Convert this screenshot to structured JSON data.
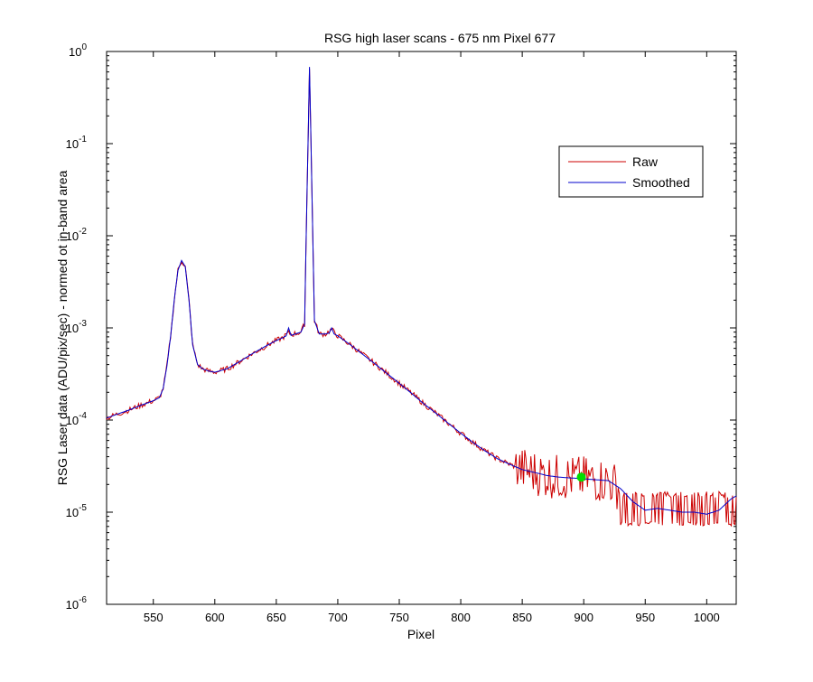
{
  "chart_data": {
    "type": "line",
    "title": "RSG high laser scans  - 675 nm    Pixel 677",
    "xlabel": "Pixel",
    "ylabel": "RSG Laser data (ADU/pix/sec) - normed ot in-band area",
    "xlim": [
      512,
      1024
    ],
    "ylim": [
      1e-06,
      1
    ],
    "yscale": "log",
    "grid": false,
    "legend_position": "top-right",
    "x_ticks": [
      550,
      600,
      650,
      700,
      750,
      800,
      850,
      900,
      950,
      1000
    ],
    "y_ticks": [
      {
        "value": 1e-06,
        "base": "10",
        "exp": "-6"
      },
      {
        "value": 1e-05,
        "base": "10",
        "exp": "-5"
      },
      {
        "value": 0.0001,
        "base": "10",
        "exp": "-4"
      },
      {
        "value": 0.001,
        "base": "10",
        "exp": "-3"
      },
      {
        "value": 0.01,
        "base": "10",
        "exp": "-2"
      },
      {
        "value": 0.1,
        "base": "10",
        "exp": "-1"
      },
      {
        "value": 1,
        "base": "10",
        "exp": "0"
      }
    ],
    "series": [
      {
        "name": "Raw",
        "color": "#cc0000",
        "points": [
          [
            512,
            0.000105
          ],
          [
            520,
            0.000115
          ],
          [
            530,
            0.000128
          ],
          [
            540,
            0.000145
          ],
          [
            550,
            0.000162
          ],
          [
            555,
            0.000175
          ],
          [
            558,
            0.00022
          ],
          [
            561,
            0.00038
          ],
          [
            564,
            0.0008
          ],
          [
            567,
            0.002
          ],
          [
            570,
            0.0042
          ],
          [
            573,
            0.0054
          ],
          [
            576,
            0.0046
          ],
          [
            579,
            0.002
          ],
          [
            582,
            0.00065
          ],
          [
            586,
            0.0004
          ],
          [
            590,
            0.00036
          ],
          [
            595,
            0.00034
          ],
          [
            600,
            0.00033
          ],
          [
            610,
            0.00036
          ],
          [
            620,
            0.00043
          ],
          [
            630,
            0.00052
          ],
          [
            640,
            0.00062
          ],
          [
            650,
            0.00073
          ],
          [
            655,
            0.00078
          ],
          [
            660,
            0.00088
          ],
          [
            663,
            0.00085
          ],
          [
            670,
            0.0009
          ],
          [
            673,
            0.0011
          ],
          [
            675,
            0.03
          ],
          [
            677,
            0.68
          ],
          [
            679,
            0.03
          ],
          [
            681,
            0.0012
          ],
          [
            685,
            0.00086
          ],
          [
            690,
            0.00086
          ],
          [
            695,
            0.00096
          ],
          [
            700,
            0.00082
          ],
          [
            710,
            0.00066
          ],
          [
            720,
            0.00052
          ],
          [
            730,
            0.00041
          ],
          [
            740,
            0.00032
          ],
          [
            750,
            0.00025
          ],
          [
            760,
            0.000195
          ],
          [
            770,
            0.00015
          ],
          [
            780,
            0.000118
          ],
          [
            790,
            9.2e-05
          ],
          [
            800,
            7.2e-05
          ],
          [
            810,
            5.7e-05
          ],
          [
            820,
            4.6e-05
          ],
          [
            830,
            3.8e-05
          ],
          [
            840,
            3.3e-05
          ],
          [
            850,
            2.9e-05
          ],
          [
            860,
            2.7e-05
          ],
          [
            870,
            2.5e-05
          ],
          [
            880,
            2.4e-05
          ],
          [
            890,
            2.35e-05
          ],
          [
            900,
            2.3e-05
          ],
          [
            910,
            2.25e-05
          ],
          [
            920,
            2.2e-05
          ],
          [
            930,
            1.8e-05
          ],
          [
            940,
            1.3e-05
          ],
          [
            950,
            1.05e-05
          ],
          [
            960,
            1.1e-05
          ],
          [
            970,
            1.05e-05
          ],
          [
            980,
            1e-05
          ],
          [
            990,
            1e-05
          ],
          [
            1000,
            1e-05
          ],
          [
            1010,
            1.05e-05
          ],
          [
            1020,
            1.4e-05
          ],
          [
            1024,
            1.5e-05
          ]
        ]
      },
      {
        "name": "Smoothed",
        "color": "#0000cc",
        "points": [
          [
            512,
            0.000105
          ],
          [
            520,
            0.000115
          ],
          [
            530,
            0.000128
          ],
          [
            540,
            0.000145
          ],
          [
            550,
            0.000162
          ],
          [
            555,
            0.000175
          ],
          [
            558,
            0.00022
          ],
          [
            561,
            0.00038
          ],
          [
            564,
            0.0008
          ],
          [
            567,
            0.002
          ],
          [
            570,
            0.0042
          ],
          [
            573,
            0.0054
          ],
          [
            576,
            0.0046
          ],
          [
            579,
            0.002
          ],
          [
            582,
            0.00065
          ],
          [
            586,
            0.0004
          ],
          [
            590,
            0.00036
          ],
          [
            595,
            0.00034
          ],
          [
            600,
            0.00033
          ],
          [
            610,
            0.00036
          ],
          [
            620,
            0.00043
          ],
          [
            630,
            0.00052
          ],
          [
            640,
            0.00062
          ],
          [
            650,
            0.00073
          ],
          [
            655,
            0.00078
          ],
          [
            658,
            0.00082
          ],
          [
            660,
            0.001
          ],
          [
            662,
            0.00083
          ],
          [
            670,
            0.0009
          ],
          [
            673,
            0.0011
          ],
          [
            675,
            0.03
          ],
          [
            677,
            0.68
          ],
          [
            679,
            0.03
          ],
          [
            681,
            0.0012
          ],
          [
            685,
            0.00086
          ],
          [
            690,
            0.00086
          ],
          [
            693,
            0.00088
          ],
          [
            695,
            0.001
          ],
          [
            697,
            0.00086
          ],
          [
            700,
            0.00082
          ],
          [
            710,
            0.00066
          ],
          [
            720,
            0.00052
          ],
          [
            730,
            0.00041
          ],
          [
            740,
            0.00032
          ],
          [
            750,
            0.00025
          ],
          [
            760,
            0.000195
          ],
          [
            770,
            0.00015
          ],
          [
            780,
            0.000118
          ],
          [
            790,
            9.2e-05
          ],
          [
            800,
            7.2e-05
          ],
          [
            810,
            5.7e-05
          ],
          [
            820,
            4.6e-05
          ],
          [
            830,
            3.8e-05
          ],
          [
            840,
            3.3e-05
          ],
          [
            850,
            2.9e-05
          ],
          [
            860,
            2.7e-05
          ],
          [
            870,
            2.5e-05
          ],
          [
            880,
            2.4e-05
          ],
          [
            890,
            2.35e-05
          ],
          [
            900,
            2.3e-05
          ],
          [
            910,
            2.25e-05
          ],
          [
            920,
            2.2e-05
          ],
          [
            930,
            1.8e-05
          ],
          [
            940,
            1.3e-05
          ],
          [
            950,
            1.05e-05
          ],
          [
            960,
            1.1e-05
          ],
          [
            970,
            1.05e-05
          ],
          [
            980,
            1e-05
          ],
          [
            990,
            1e-05
          ],
          [
            1000,
            9.5e-06
          ],
          [
            1010,
            1.05e-05
          ],
          [
            1020,
            1.4e-05
          ],
          [
            1024,
            1.5e-05
          ]
        ]
      }
    ],
    "raw_noise_region": {
      "x_start": 845,
      "x_end": 1024,
      "upper": 1.6e-05,
      "lower": 7.5e-06,
      "seed": 677
    },
    "marker": {
      "x": 898,
      "y": 2.4e-05,
      "color": "#00dd00"
    }
  }
}
